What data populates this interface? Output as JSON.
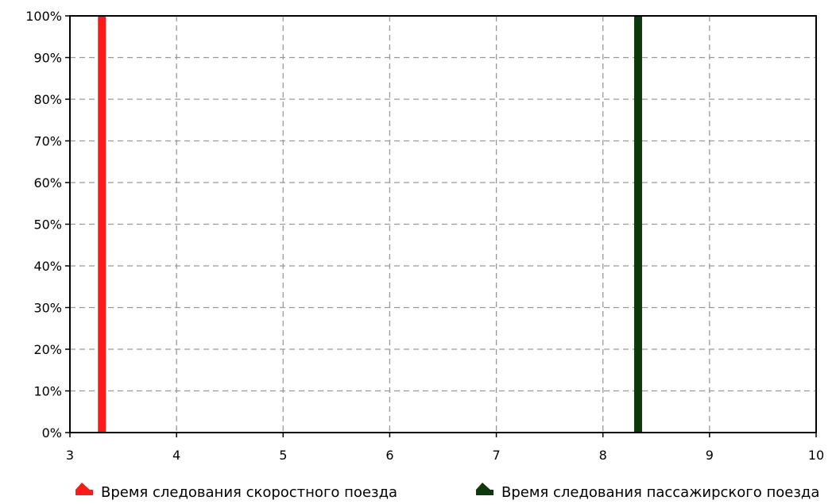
{
  "chart_data": {
    "type": "bar",
    "title": "",
    "xlabel": "",
    "ylabel": "",
    "xlim": [
      3,
      10
    ],
    "ylim": [
      0,
      100
    ],
    "x_ticks": [
      3,
      4,
      5,
      6,
      7,
      8,
      9,
      10
    ],
    "y_ticks": [
      0,
      10,
      20,
      30,
      40,
      50,
      60,
      70,
      80,
      90,
      100
    ],
    "y_tick_suffix": "%",
    "grid": true,
    "legend_position": "bottom",
    "series": [
      {
        "name": "Время следования скоростного поезда",
        "color": "#ff1a1a",
        "points": [
          {
            "x": 3.3,
            "y": 100
          }
        ]
      },
      {
        "name": "Время следования пассажирского поезда",
        "color": "#0d3a0d",
        "points": [
          {
            "x": 8.33,
            "y": 100
          }
        ]
      }
    ]
  }
}
